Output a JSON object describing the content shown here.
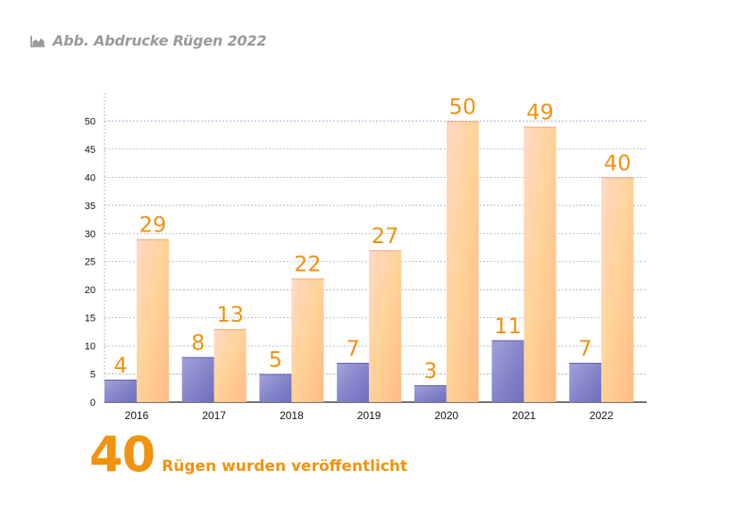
{
  "header": {
    "icon": "area-chart-icon",
    "title": "Abb. Abdrucke Rügen 2022"
  },
  "footer": {
    "value": "40",
    "caption": "Rügen wurden veröffentlicht"
  },
  "colors": {
    "accent": "#f0930f",
    "series_a_light": "#9f9fd6",
    "series_a_dark": "#6f6fbf",
    "series_b_light": "#ffe0c8",
    "series_b_dark": "#ffbf86",
    "grid": "#9aa8c8"
  },
  "chart_data": {
    "type": "bar",
    "title": "Abb. Abdrucke Rügen 2022",
    "categories": [
      "2016",
      "2017",
      "2018",
      "2019",
      "2020",
      "2021",
      "2022"
    ],
    "series": [
      {
        "values": [
          4,
          8,
          5,
          7,
          3,
          11,
          7
        ]
      },
      {
        "values": [
          29,
          13,
          22,
          27,
          50,
          49,
          40
        ]
      }
    ],
    "ylim": [
      0,
      55
    ],
    "yticks": [
      0,
      5,
      10,
      15,
      20,
      25,
      30,
      35,
      40,
      45,
      50
    ],
    "grid": true,
    "data_labels": true,
    "xlabel": "",
    "ylabel": ""
  }
}
